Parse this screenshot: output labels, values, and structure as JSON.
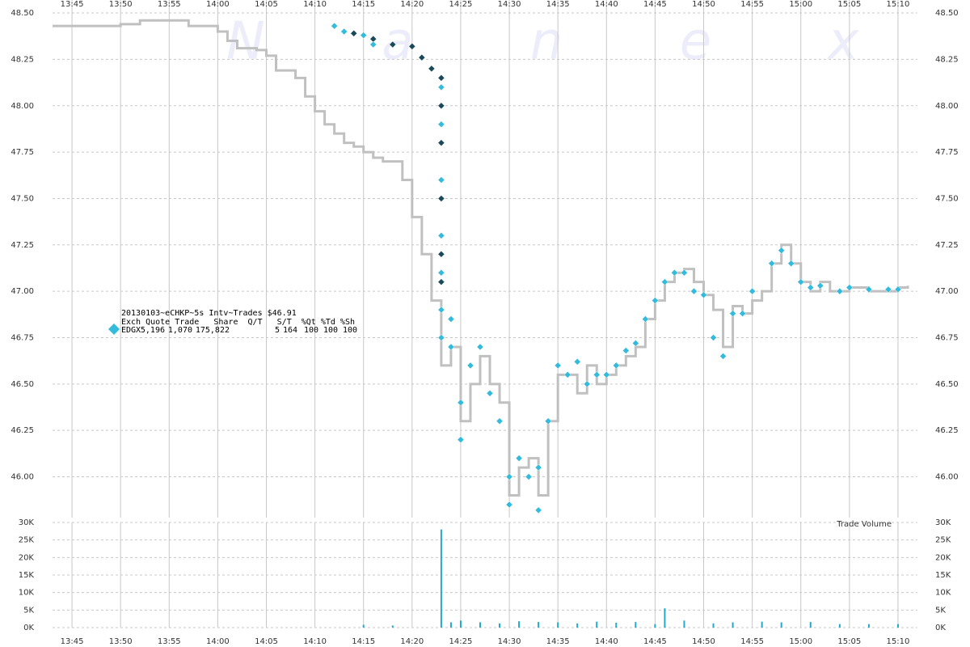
{
  "chart_data": [
    {
      "type": "line",
      "watermark": "N a n e x",
      "legend_title": "20130103~eCHKP~5s Intv~Trades $46.91",
      "legend_header": "Exch Quote Trade   Share  Q/T   S/T  %Qt %Td %Sh",
      "xlim": [
        "13:43",
        "15:12"
      ],
      "xticks": [
        "13:45",
        "13:50",
        "13:55",
        "14:00",
        "14:05",
        "14:10",
        "14:15",
        "14:20",
        "14:25",
        "14:30",
        "14:35",
        "14:40",
        "14:45",
        "14:50",
        "14:55",
        "15:00",
        "15:05",
        "15:10"
      ],
      "ylim": [
        45.78,
        48.57
      ],
      "yticks": [
        {
          "value": 46,
          "label": "46.00"
        },
        46.25,
        {
          "value": 46.5,
          "label": "46.50"
        },
        46.75,
        {
          "value": 47,
          "label": "47.00"
        },
        47.25,
        {
          "value": 47.5,
          "label": "47.50"
        },
        47.75,
        {
          "value": 48,
          "label": "48.00"
        },
        48.25,
        {
          "value": 48.5,
          "label": "48.50"
        }
      ],
      "grid": true,
      "series": [
        {
          "style": "line",
          "color": "#c0c0c0",
          "x": [
            "13:43",
            "13:49",
            "13:50",
            "13:52",
            "13:55",
            "13:57",
            "14:00",
            "14:01",
            "14:02",
            "14:04",
            "14:05",
            "14:06",
            "14:08",
            "14:09",
            "14:10",
            "14:11",
            "14:12",
            "14:13",
            "14:14",
            "14:15",
            "14:16",
            "14:17",
            "14:18",
            "14:19",
            "14:20",
            "14:21",
            "14:22",
            "14:23",
            "14:24",
            "14:25",
            "14:26",
            "14:27",
            "14:28",
            "14:29",
            "14:30",
            "14:31",
            "14:32",
            "14:33",
            "14:34",
            "14:35",
            "14:36",
            "14:37",
            "14:38",
            "14:39",
            "14:40",
            "14:41",
            "14:42",
            "14:43",
            "14:44",
            "14:45",
            "14:46",
            "14:47",
            "14:48",
            "14:49",
            "14:50",
            "14:51",
            "14:52",
            "14:53",
            "14:54",
            "14:55",
            "14:56",
            "14:57",
            "14:58",
            "14:59",
            "15:00",
            "15:01",
            "15:02",
            "15:03",
            "15:04",
            "15:05",
            "15:06",
            "15:07",
            "15:08",
            "15:09",
            "15:10",
            "15:11"
          ],
          "values": [
            48.43,
            48.43,
            48.44,
            48.46,
            48.46,
            48.43,
            48.4,
            48.35,
            48.31,
            48.3,
            48.27,
            48.19,
            48.15,
            48.05,
            47.97,
            47.9,
            47.85,
            47.8,
            47.78,
            47.75,
            47.72,
            47.7,
            47.7,
            47.6,
            47.4,
            47.2,
            46.95,
            46.6,
            46.7,
            46.3,
            46.5,
            46.65,
            46.5,
            46.4,
            45.9,
            46.05,
            46.1,
            45.9,
            46.3,
            46.55,
            46.55,
            46.45,
            46.6,
            46.5,
            46.55,
            46.6,
            46.65,
            46.7,
            46.85,
            46.95,
            47.05,
            47.1,
            47.12,
            47.05,
            46.98,
            46.9,
            46.7,
            46.92,
            46.88,
            46.95,
            47.0,
            47.15,
            47.25,
            47.15,
            47.05,
            47.0,
            47.05,
            47.0,
            47.0,
            47.02,
            47.02,
            47.0,
            47.0,
            47.0,
            47.02,
            47.03
          ]
        },
        {
          "style": "diamond",
          "color": "#1a4a5a",
          "x": [
            "14:14",
            "14:16",
            "14:18",
            "14:20",
            "14:21",
            "14:22",
            "14:23",
            "14:23",
            "14:23",
            "14:23",
            "14:23",
            "14:23"
          ],
          "values": [
            48.39,
            48.36,
            48.33,
            48.32,
            48.26,
            48.2,
            48.15,
            48.0,
            47.8,
            47.5,
            47.2,
            47.05
          ]
        },
        {
          "style": "diamond",
          "name": "EDGX",
          "color": "#33bbdd",
          "legend_values": [
            "5,196",
            "1,070",
            "175,822",
            "5",
            "164",
            "100",
            "100",
            "100"
          ],
          "x": [
            "14:12",
            "14:13",
            "14:15",
            "14:16",
            "14:23",
            "14:23",
            "14:23",
            "14:23",
            "14:23",
            "14:23",
            "14:23",
            "14:24",
            "14:24",
            "14:25",
            "14:25",
            "14:26",
            "14:27",
            "14:28",
            "14:29",
            "14:30",
            "14:30",
            "14:31",
            "14:32",
            "14:33",
            "14:33",
            "14:34",
            "14:35",
            "14:36",
            "14:37",
            "14:38",
            "14:39",
            "14:40",
            "14:41",
            "14:42",
            "14:43",
            "14:44",
            "14:45",
            "14:46",
            "14:47",
            "14:48",
            "14:49",
            "14:50",
            "14:51",
            "14:52",
            "14:53",
            "14:54",
            "14:55",
            "14:57",
            "14:58",
            "14:59",
            "15:00",
            "15:01",
            "15:02",
            "15:04",
            "15:05",
            "15:07",
            "15:09",
            "15:10"
          ],
          "values": [
            48.43,
            48.4,
            48.38,
            48.33,
            48.1,
            47.9,
            47.6,
            47.3,
            47.1,
            46.9,
            46.75,
            46.7,
            46.85,
            46.4,
            46.2,
            46.6,
            46.7,
            46.45,
            46.3,
            46.0,
            45.85,
            46.1,
            46.0,
            45.82,
            46.05,
            46.3,
            46.6,
            46.55,
            46.62,
            46.5,
            46.55,
            46.55,
            46.6,
            46.68,
            46.72,
            46.85,
            46.95,
            47.05,
            47.1,
            47.1,
            47.0,
            46.98,
            46.75,
            46.65,
            46.88,
            46.88,
            47.0,
            47.15,
            47.22,
            47.15,
            47.05,
            47.02,
            47.03,
            47.0,
            47.02,
            47.01,
            47.01,
            47.01
          ]
        }
      ]
    },
    {
      "type": "bar",
      "title": "Trade Volume",
      "xlim": [
        "13:43",
        "15:12"
      ],
      "xticks": [
        "13:45",
        "13:50",
        "13:55",
        "14:00",
        "14:05",
        "14:10",
        "14:15",
        "14:20",
        "14:25",
        "14:30",
        "14:35",
        "14:40",
        "14:45",
        "14:50",
        "14:55",
        "15:00",
        "15:05",
        "15:10"
      ],
      "ylim": [
        0,
        30000
      ],
      "yticks": [
        {
          "value": 0,
          "label": "0K"
        },
        {
          "value": 5000,
          "label": "5K"
        },
        {
          "value": 10000,
          "label": "10K"
        },
        {
          "value": 15000,
          "label": "15K"
        },
        {
          "value": 20000,
          "label": "20K"
        },
        {
          "value": 25000,
          "label": "25K"
        },
        {
          "value": 30000,
          "label": "30K"
        }
      ],
      "grid": true,
      "color": "#22aacc",
      "x": [
        "14:15",
        "14:18",
        "14:23",
        "14:24",
        "14:25",
        "14:27",
        "14:29",
        "14:31",
        "14:33",
        "14:35",
        "14:37",
        "14:39",
        "14:41",
        "14:43",
        "14:45",
        "14:46",
        "14:48",
        "14:51",
        "14:53",
        "14:56",
        "14:58",
        "15:01",
        "15:04",
        "15:07",
        "15:10"
      ],
      "values": [
        800,
        600,
        28000,
        1500,
        2000,
        1500,
        1200,
        1800,
        1600,
        1500,
        1200,
        1700,
        1400,
        1600,
        1000,
        5500,
        2000,
        1200,
        1500,
        1700,
        1500,
        1600,
        1000,
        1000,
        1000
      ]
    }
  ]
}
